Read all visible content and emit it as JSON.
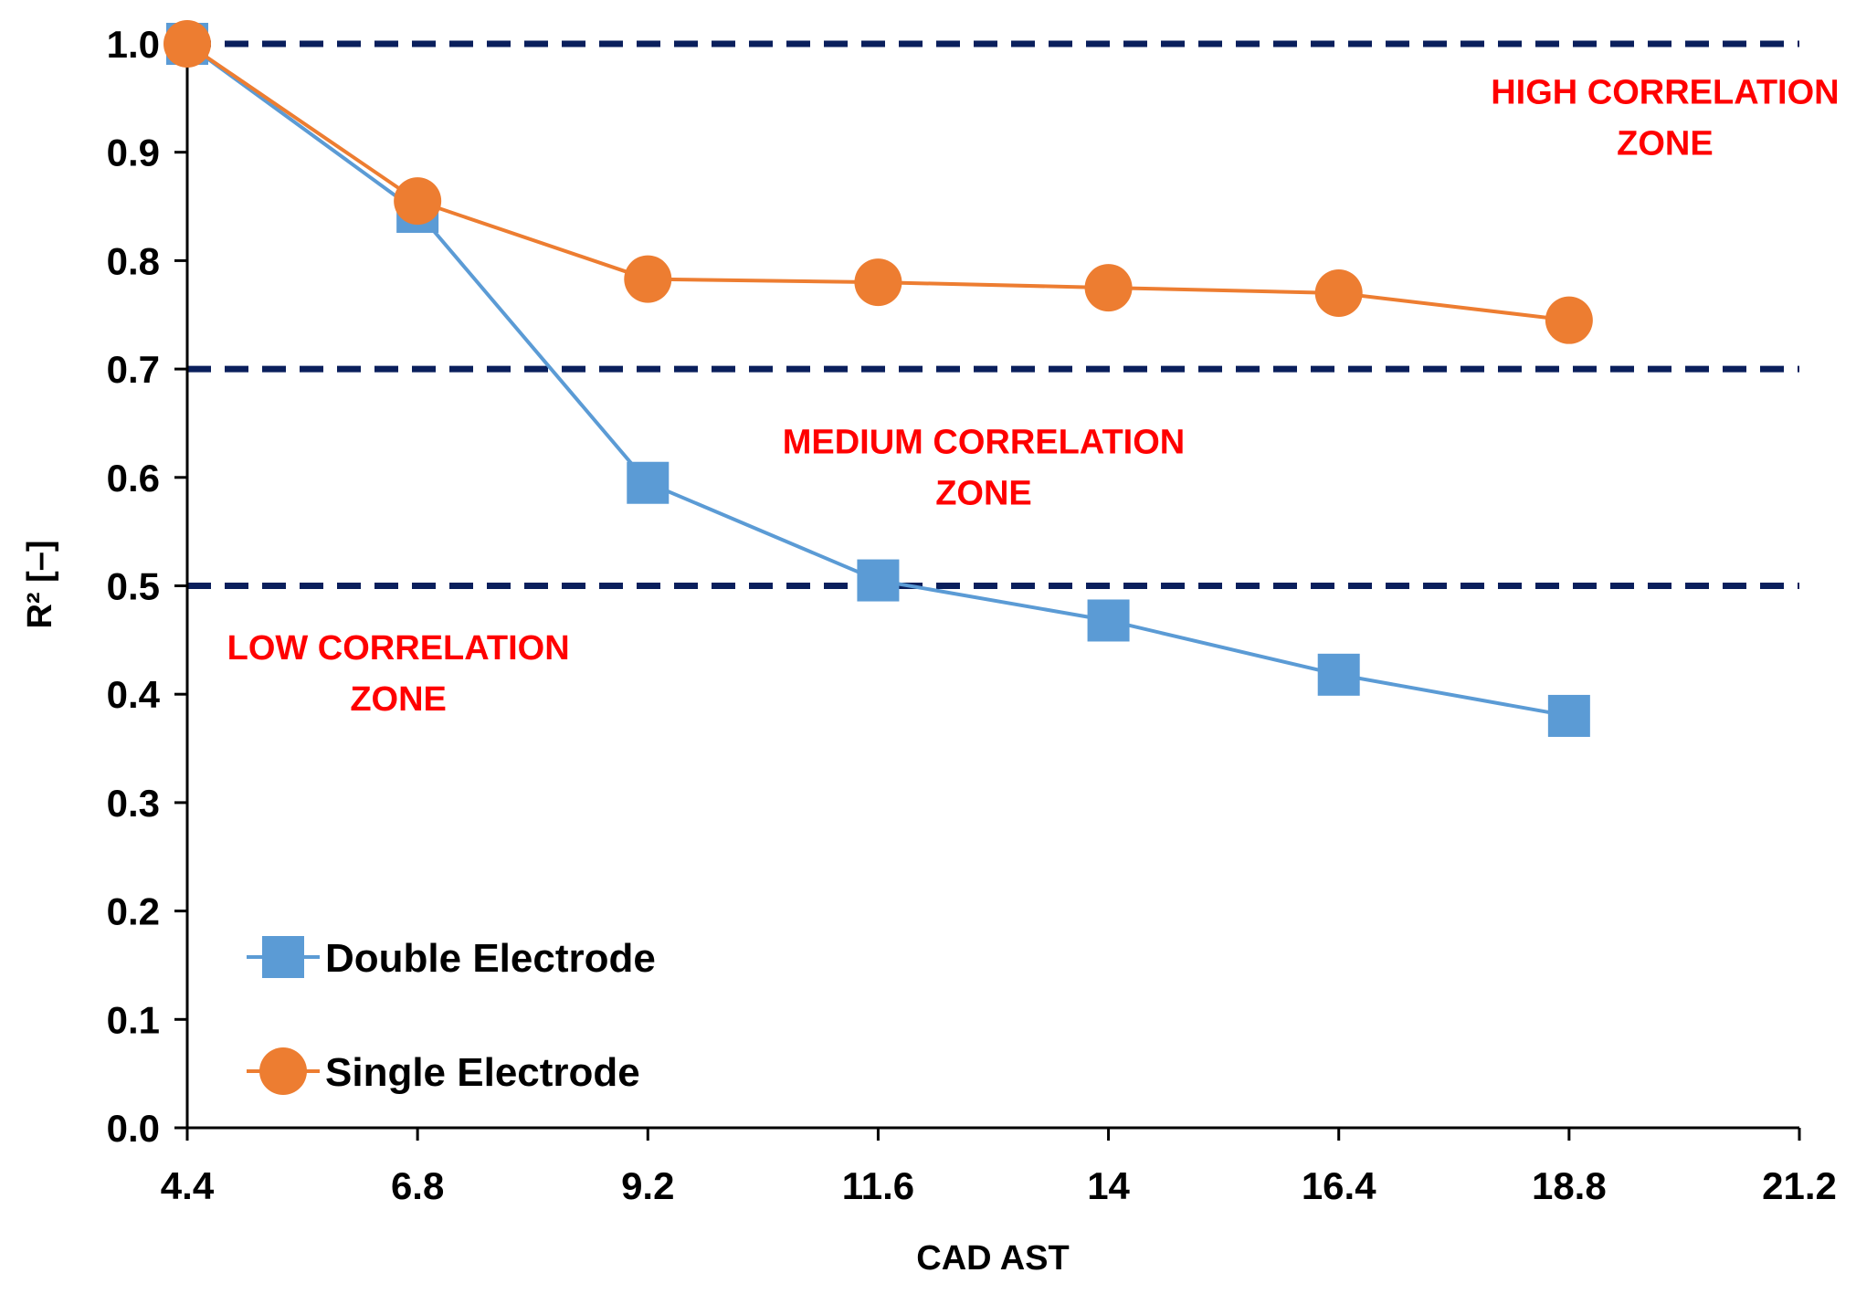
{
  "chart_data": {
    "type": "line",
    "title": "",
    "xlabel": "CAD AST",
    "ylabel": "R² [–]",
    "x_ticks": [
      "4.4",
      "6.8",
      "9.2",
      "11.6",
      "14",
      "16.4",
      "18.8",
      "21.2"
    ],
    "y_ticks": [
      "0.0",
      "0.1",
      "0.2",
      "0.3",
      "0.4",
      "0.5",
      "0.6",
      "0.7",
      "0.8",
      "0.9",
      "1.0"
    ],
    "xlim": [
      4.4,
      21.2
    ],
    "ylim": [
      0,
      1
    ],
    "grid": false,
    "legend_position": "bottom-left",
    "x": [
      4.4,
      6.8,
      9.2,
      11.6,
      14,
      16.4,
      18.8
    ],
    "series": [
      {
        "name": "Double Electrode",
        "marker": "square",
        "color": "#5b9bd5",
        "values": [
          1.0,
          0.845,
          0.595,
          0.505,
          0.468,
          0.418,
          0.38
        ]
      },
      {
        "name": "Single Electrode",
        "marker": "circle",
        "color": "#ed7d31",
        "values": [
          1.0,
          0.855,
          0.783,
          0.78,
          0.775,
          0.77,
          0.745
        ]
      }
    ],
    "reference_lines": [
      {
        "y": 1.0,
        "color": "#0a1f5c"
      },
      {
        "y": 0.7,
        "color": "#0a1f5c"
      },
      {
        "y": 0.5,
        "color": "#0a1f5c"
      }
    ],
    "annotations": [
      {
        "id": "high",
        "lines": [
          "HIGH CORRELATION",
          "ZONE"
        ],
        "x": 19.8,
        "y": 0.945
      },
      {
        "id": "medium",
        "lines": [
          "MEDIUM CORRELATION",
          "ZONE"
        ],
        "x": 12.7,
        "y": 0.622
      },
      {
        "id": "low",
        "lines": [
          "LOW CORRELATION",
          "ZONE"
        ],
        "x": 6.6,
        "y": 0.432
      }
    ],
    "zone_color": "#ff0000"
  }
}
